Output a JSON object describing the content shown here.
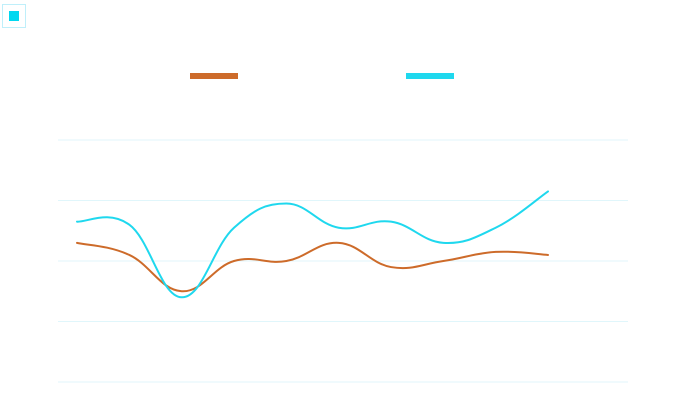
{
  "toolbar": {
    "toggle_icon": "square-icon",
    "accent": "#00d8f0"
  },
  "chart_data": {
    "type": "line",
    "title": "",
    "xlabel": "",
    "ylabel": "",
    "x": [
      1,
      2,
      3,
      4,
      5,
      6,
      7,
      8,
      9,
      10
    ],
    "ylim": [
      0,
      4
    ],
    "grid": true,
    "legend": "top",
    "series": [
      {
        "color": "#cd6b2a",
        "values": [
          2.3,
          2.1,
          1.5,
          2.0,
          2.0,
          2.3,
          1.9,
          2.0,
          2.15,
          2.1
        ]
      },
      {
        "color": "#1fd8ee",
        "values": [
          2.65,
          2.6,
          1.4,
          2.55,
          2.95,
          2.55,
          2.65,
          2.3,
          2.55,
          3.15
        ]
      }
    ]
  }
}
